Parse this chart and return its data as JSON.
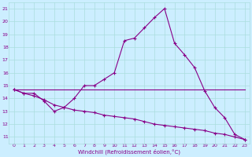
{
  "xlabel": "Windchill (Refroidissement éolien,°C)",
  "xlim": [
    -0.5,
    23.5
  ],
  "ylim": [
    10.5,
    21.5
  ],
  "yticks": [
    11,
    12,
    13,
    14,
    15,
    16,
    17,
    18,
    19,
    20,
    21
  ],
  "xticks": [
    0,
    1,
    2,
    3,
    4,
    5,
    6,
    7,
    8,
    9,
    10,
    11,
    12,
    13,
    14,
    15,
    16,
    17,
    18,
    19,
    20,
    21,
    22,
    23
  ],
  "bg_color": "#cceeff",
  "line_color": "#880088",
  "grid_color": "#aadddd",
  "line1_x": [
    0,
    1,
    2,
    3,
    4,
    5,
    6,
    7,
    8,
    9,
    10,
    11,
    12,
    13,
    14,
    15,
    16,
    17,
    18,
    19,
    20,
    21,
    22,
    23
  ],
  "line1_y": [
    14.7,
    14.4,
    14.4,
    13.8,
    13.0,
    13.3,
    14.0,
    15.0,
    15.0,
    15.5,
    16.0,
    18.5,
    18.7,
    19.5,
    20.3,
    21.0,
    18.3,
    17.4,
    16.4,
    14.6,
    13.3,
    12.5,
    11.2,
    10.8
  ],
  "line2_x": [
    0,
    19,
    23
  ],
  "line2_y": [
    14.7,
    14.7,
    14.7
  ],
  "line3_x": [
    0,
    1,
    2,
    3,
    4,
    5,
    6,
    7,
    8,
    9,
    10,
    11,
    12,
    13,
    14,
    15,
    16,
    17,
    18,
    19,
    20,
    21,
    22,
    23
  ],
  "line3_y": [
    14.7,
    14.4,
    14.2,
    13.9,
    13.5,
    13.3,
    13.1,
    13.0,
    12.9,
    12.7,
    12.6,
    12.5,
    12.4,
    12.2,
    12.0,
    11.9,
    11.8,
    11.7,
    11.6,
    11.5,
    11.3,
    11.2,
    11.0,
    10.8
  ],
  "tick_fontsize": 4.5,
  "xlabel_fontsize": 5.0,
  "linewidth": 0.8,
  "marker_size": 3
}
